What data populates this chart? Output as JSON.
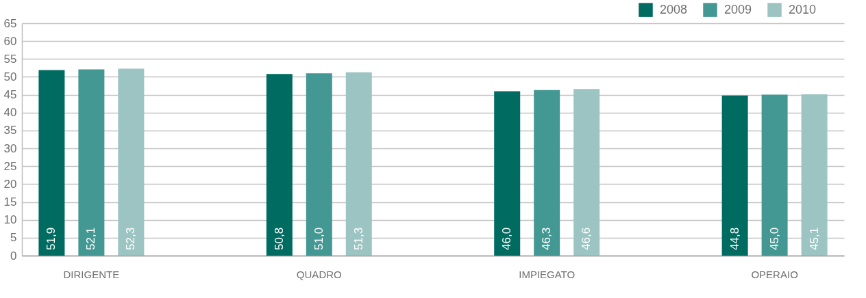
{
  "chart_data": {
    "type": "bar",
    "categories": [
      "DIRIGENTE",
      "QUADRO",
      "IMPIEGATO",
      "OPERAIO"
    ],
    "series": [
      {
        "name": "2008",
        "color": "#006b60",
        "values": [
          51.9,
          50.8,
          46.0,
          44.8
        ],
        "value_labels": [
          "51,9",
          "50,8",
          "46,0",
          "44,8"
        ]
      },
      {
        "name": "2009",
        "color": "#449893",
        "values": [
          52.1,
          51.0,
          46.3,
          45.0
        ],
        "value_labels": [
          "52,1",
          "51,0",
          "46,3",
          "45,0"
        ]
      },
      {
        "name": "2010",
        "color": "#9bc4c2",
        "values": [
          52.3,
          51.3,
          46.6,
          45.1
        ],
        "value_labels": [
          "52,3",
          "51,3",
          "46,6",
          "45,1"
        ]
      }
    ],
    "ylim": [
      0,
      65
    ],
    "yticks": [
      0,
      5,
      10,
      15,
      20,
      25,
      30,
      35,
      40,
      45,
      50,
      55,
      60,
      65
    ],
    "grid": "y",
    "legend": "top right"
  }
}
